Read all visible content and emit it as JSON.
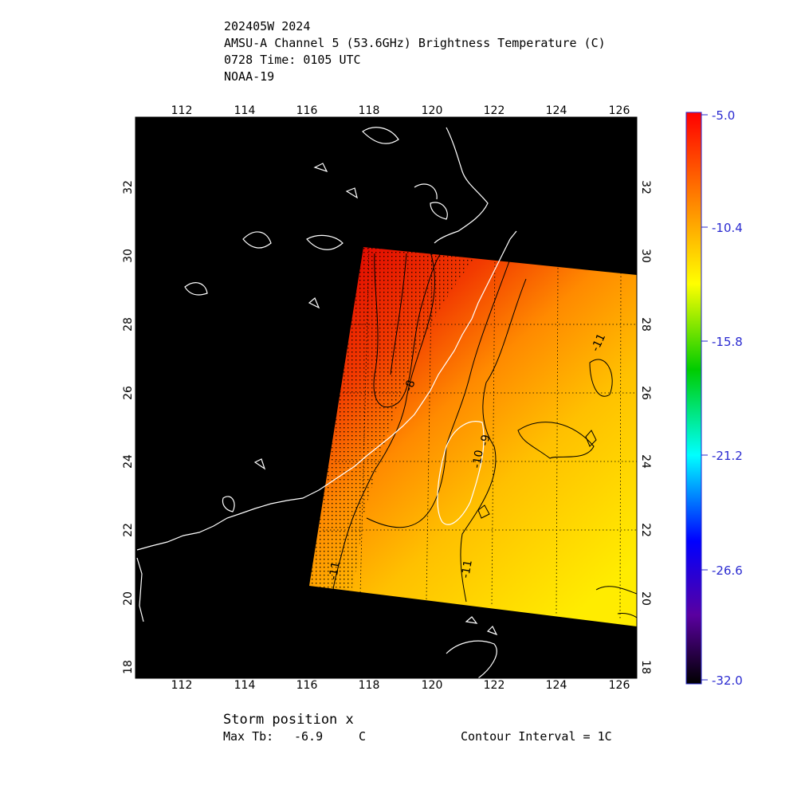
{
  "header": {
    "line1": "202405W 2024",
    "line2": "AMSU-A Channel 5 (53.6GHz) Brightness Temperature (C)",
    "line3": "0728 Time: 0105 UTC",
    "line4": "NOAA-19"
  },
  "map": {
    "lon_range": [
      110.7,
      126.7
    ],
    "lat_range": [
      17.5,
      33.5
    ],
    "lon_ticks": [
      "112",
      "114",
      "116",
      "118",
      "120",
      "122",
      "124",
      "126"
    ],
    "lat_ticks": [
      "18",
      "20",
      "22",
      "24",
      "26",
      "28",
      "30",
      "32"
    ],
    "swath_corners_lonlat": [
      [
        118.0,
        30.1
      ],
      [
        126.7,
        29.4
      ],
      [
        126.7,
        19.2
      ],
      [
        116.3,
        20.4
      ]
    ],
    "contour_labels": [
      "-8",
      "-9",
      "-10",
      "-11",
      "-11",
      "-11"
    ],
    "colors": {
      "ocean": "#000000",
      "coast": "#ffffff",
      "swath_hot": "#e81000",
      "swath_mid": "#ff7000",
      "swath_cool": "#ffe000"
    }
  },
  "colorbar": {
    "ticks": [
      "-5.0",
      "-10.4",
      "-15.8",
      "-21.2",
      "-26.6",
      "-32.0"
    ],
    "colors": [
      "#ff0000",
      "#ff9900",
      "#ffff00",
      "#00cc00",
      "#00ffff",
      "#0000ff",
      "#6a00aa",
      "#000000"
    ]
  },
  "footer": {
    "storm": "Storm position x",
    "max_tb_label": "Max Tb:",
    "max_tb_value": "-6.9",
    "max_tb_unit": "C",
    "contour": "Contour Interval = 1C"
  }
}
